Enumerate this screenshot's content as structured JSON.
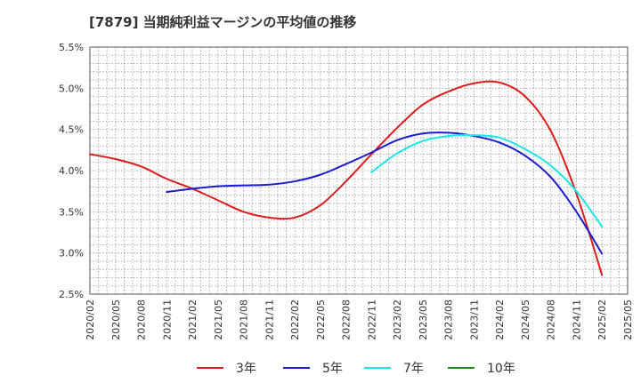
{
  "title": "[7879]  当期純利益マージンの平均値の推移",
  "chart_data": {
    "type": "line",
    "title": "[7879]  当期純利益マージンの平均値の推移",
    "xlabel": "",
    "ylabel": "",
    "ylim": [
      2.5,
      5.5
    ],
    "grid": true,
    "legend_position": "bottom",
    "x_ticks": [
      "2020/02",
      "2020/05",
      "2020/08",
      "2020/11",
      "2021/02",
      "2021/05",
      "2021/08",
      "2021/11",
      "2022/02",
      "2022/05",
      "2022/08",
      "2022/11",
      "2023/02",
      "2023/05",
      "2023/08",
      "2023/11",
      "2024/02",
      "2024/05",
      "2024/08",
      "2024/11",
      "2025/02",
      "2025/05"
    ],
    "y_ticks": [
      "2.5%",
      "3.0%",
      "3.5%",
      "4.0%",
      "4.5%",
      "5.0%",
      "5.5%"
    ],
    "y_tick_values": [
      2.5,
      3.0,
      3.5,
      4.0,
      4.5,
      5.0,
      5.5
    ],
    "series": [
      {
        "name": "3年",
        "color": "#dd1c1c",
        "x": [
          "2020/02",
          "2020/05",
          "2020/08",
          "2020/11",
          "2021/02",
          "2021/05",
          "2021/08",
          "2021/11",
          "2022/02",
          "2022/05",
          "2022/08",
          "2022/11",
          "2023/02",
          "2023/05",
          "2023/08",
          "2023/11",
          "2024/02",
          "2024/05",
          "2024/08",
          "2024/11",
          "2025/02"
        ],
        "values": [
          4.2,
          4.14,
          4.05,
          3.9,
          3.78,
          3.64,
          3.5,
          3.43,
          3.43,
          3.58,
          3.87,
          4.2,
          4.52,
          4.8,
          4.96,
          5.06,
          5.07,
          4.9,
          4.48,
          3.72,
          2.73
        ]
      },
      {
        "name": "5年",
        "color": "#1c1ccd",
        "x": [
          "2020/11",
          "2021/02",
          "2021/05",
          "2021/08",
          "2021/11",
          "2022/02",
          "2022/05",
          "2022/08",
          "2022/11",
          "2023/02",
          "2023/05",
          "2023/08",
          "2023/11",
          "2024/02",
          "2024/05",
          "2024/08",
          "2024/11",
          "2025/02"
        ],
        "values": [
          3.74,
          3.78,
          3.81,
          3.82,
          3.83,
          3.87,
          3.95,
          4.08,
          4.22,
          4.37,
          4.45,
          4.46,
          4.42,
          4.34,
          4.18,
          3.92,
          3.5,
          2.99
        ]
      },
      {
        "name": "7年",
        "color": "#1ce6e6",
        "x": [
          "2022/11",
          "2023/02",
          "2023/05",
          "2023/08",
          "2023/11",
          "2024/02",
          "2024/05",
          "2024/08",
          "2024/11",
          "2025/02"
        ],
        "values": [
          3.98,
          4.21,
          4.36,
          4.42,
          4.43,
          4.4,
          4.26,
          4.06,
          3.75,
          3.32
        ]
      },
      {
        "name": "10年",
        "color": "#1c8c1c",
        "x": [],
        "values": []
      }
    ]
  }
}
